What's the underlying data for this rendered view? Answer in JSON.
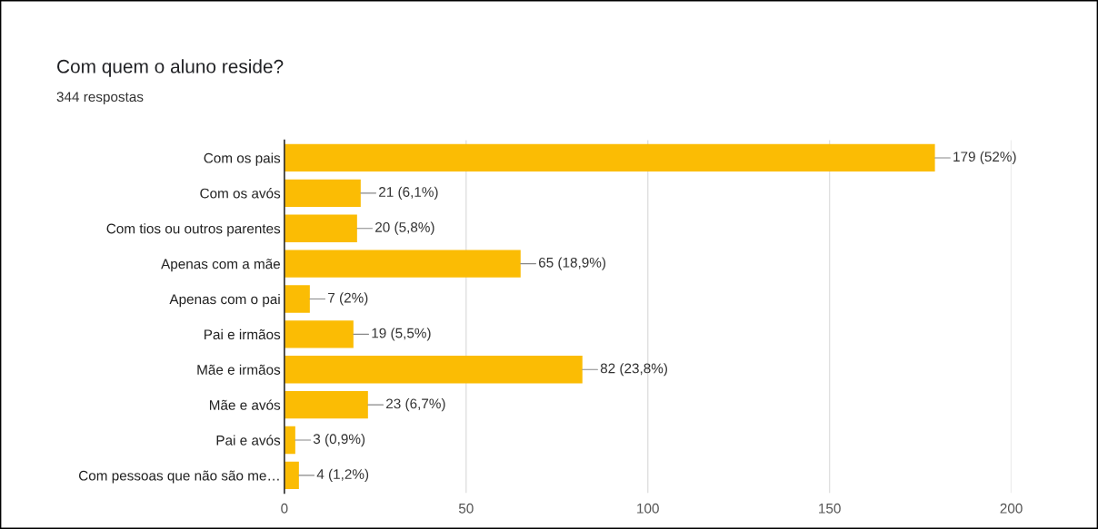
{
  "chart_data": {
    "type": "bar",
    "orientation": "horizontal",
    "title": "Com quem o aluno reside?",
    "subtitle": "344 respostas",
    "categories": [
      "Com os pais",
      "Com os avós",
      "Com tios ou outros parentes",
      "Apenas com a mãe",
      "Apenas com o pai",
      "Pai e irmãos",
      "Mãe e irmãos",
      "Mãe e avós",
      "Pai e avós",
      "Com pessoas que não são me…"
    ],
    "values": [
      179,
      21,
      20,
      65,
      7,
      19,
      82,
      23,
      3,
      4
    ],
    "value_labels": [
      "179 (52%)",
      "21 (6,1%)",
      "20 (5,8%)",
      "65 (18,9%)",
      "7 (2%)",
      "19 (5,5%)",
      "82 (23,8%)",
      "23 (6,7%)",
      "3 (0,9%)",
      "4 (1,2%)"
    ],
    "color": "#fbbc04",
    "xlim": [
      0,
      200
    ],
    "xticks": [
      0,
      50,
      100,
      150,
      200
    ],
    "grid": "x",
    "legend": false
  }
}
